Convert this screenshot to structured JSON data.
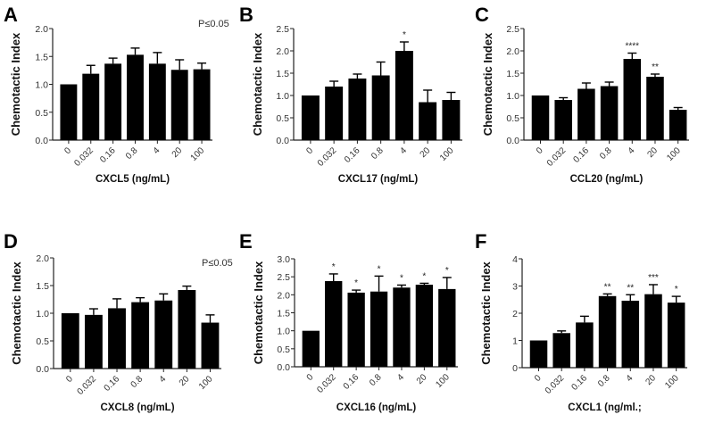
{
  "chart_data": [
    {
      "type": "bar",
      "panel": "A",
      "title": "",
      "xlabel": "CXCL5 (ng/mL)",
      "ylabel": "Chemotactic Index",
      "categories": [
        "0",
        "0.032",
        "0.16",
        "0.8",
        "4",
        "20",
        "100"
      ],
      "values": [
        1.0,
        1.19,
        1.37,
        1.53,
        1.37,
        1.26,
        1.27
      ],
      "errors": [
        0.0,
        0.15,
        0.1,
        0.12,
        0.2,
        0.18,
        0.11
      ],
      "significance": [
        "",
        "",
        "",
        "",
        "",
        "",
        ""
      ],
      "ylim": [
        0,
        2.0
      ],
      "yticks": [
        "0.0",
        "0.5",
        "1.0",
        "1.5",
        "2.0"
      ],
      "ytick_values": [
        0,
        0.5,
        1.0,
        1.5,
        2.0
      ],
      "annotation": "P≤0.05",
      "grid": false
    },
    {
      "type": "bar",
      "panel": "B",
      "title": "",
      "xlabel": "CXCL17 (ng/mL)",
      "ylabel": "Chemotactic Index",
      "categories": [
        "0",
        "0.032",
        "0.16",
        "0.8",
        "4",
        "20",
        "100"
      ],
      "values": [
        1.0,
        1.2,
        1.38,
        1.45,
        2.0,
        0.85,
        0.9
      ],
      "errors": [
        0.0,
        0.12,
        0.1,
        0.3,
        0.2,
        0.27,
        0.17
      ],
      "significance": [
        "",
        "",
        "",
        "",
        "*",
        "",
        ""
      ],
      "ylim": [
        0,
        2.5
      ],
      "yticks": [
        "0.0",
        "0.5",
        "1.0",
        "1.5",
        "2.0",
        "2.5"
      ],
      "ytick_values": [
        0,
        0.5,
        1.0,
        1.5,
        2.0,
        2.5
      ],
      "annotation": "",
      "grid": false
    },
    {
      "type": "bar",
      "panel": "C",
      "title": "",
      "xlabel": "CCL20 (ng/mL)",
      "ylabel": "Chemotactic Index",
      "categories": [
        "0",
        "0.032",
        "0.16",
        "0.8",
        "4",
        "20",
        "100"
      ],
      "values": [
        1.0,
        0.9,
        1.15,
        1.21,
        1.82,
        1.42,
        0.68
      ],
      "errors": [
        0.0,
        0.05,
        0.13,
        0.09,
        0.13,
        0.06,
        0.05
      ],
      "significance": [
        "",
        "",
        "",
        "",
        "****",
        "**",
        ""
      ],
      "ylim": [
        0,
        2.5
      ],
      "yticks": [
        "0.0",
        "0.5",
        "1.0",
        "1.5",
        "2.0",
        "2.5"
      ],
      "ytick_values": [
        0,
        0.5,
        1.0,
        1.5,
        2.0,
        2.5
      ],
      "annotation": "",
      "grid": false
    },
    {
      "type": "bar",
      "panel": "D",
      "title": "",
      "xlabel": "CXCL8 (ng/mL)",
      "ylabel": "Chemotactic Index",
      "categories": [
        "0",
        "0.032",
        "0.16",
        "0.8",
        "4",
        "20",
        "100"
      ],
      "values": [
        1.0,
        0.97,
        1.09,
        1.2,
        1.23,
        1.42,
        0.83
      ],
      "errors": [
        0.0,
        0.11,
        0.17,
        0.08,
        0.12,
        0.07,
        0.14
      ],
      "significance": [
        "",
        "",
        "",
        "",
        "",
        "",
        ""
      ],
      "ylim": [
        0,
        2.0
      ],
      "yticks": [
        "0.0",
        "0.5",
        "1.0",
        "1.5",
        "2.0"
      ],
      "ytick_values": [
        0,
        0.5,
        1.0,
        1.5,
        2.0
      ],
      "annotation": "P≤0.05",
      "grid": false
    },
    {
      "type": "bar",
      "panel": "E",
      "title": "",
      "xlabel": "CXCL16 (ng/mL)",
      "ylabel": "Chemotactic Index",
      "categories": [
        "0",
        "0.032",
        "0.16",
        "0.8",
        "4",
        "20",
        "100"
      ],
      "values": [
        1.0,
        2.38,
        2.06,
        2.09,
        2.2,
        2.28,
        2.16
      ],
      "errors": [
        0.0,
        0.2,
        0.07,
        0.43,
        0.07,
        0.04,
        0.32
      ],
      "significance": [
        "",
        "*",
        "*",
        "*",
        "*",
        "*",
        "*"
      ],
      "ylim": [
        0,
        3.0
      ],
      "yticks": [
        "0.0",
        "0.5",
        "1.0",
        "1.5",
        "2.0",
        "2.5",
        "3.0"
      ],
      "ytick_values": [
        0,
        0.5,
        1.0,
        1.5,
        2.0,
        2.5,
        3.0
      ],
      "annotation": "",
      "grid": false
    },
    {
      "type": "bar",
      "panel": "F",
      "title": "",
      "xlabel": "CXCL1 (ng/ml.;",
      "ylabel": "Chemotactic Index",
      "categories": [
        "0",
        "0.032",
        "0.16",
        "0.8",
        "4",
        "20",
        "100"
      ],
      "values": [
        1.0,
        1.27,
        1.66,
        2.63,
        2.46,
        2.7,
        2.39
      ],
      "errors": [
        0.0,
        0.08,
        0.23,
        0.08,
        0.22,
        0.35,
        0.23
      ],
      "significance": [
        "",
        "",
        "",
        "**",
        "**",
        "***",
        "*"
      ],
      "ylim": [
        0,
        4
      ],
      "yticks": [
        "0",
        "1",
        "2",
        "3",
        "4"
      ],
      "ytick_values": [
        0,
        1,
        2,
        3,
        4
      ],
      "annotation": "",
      "grid": false
    }
  ],
  "colors": {
    "bar": "#000000",
    "axis": "#222222",
    "text": "#333333"
  }
}
